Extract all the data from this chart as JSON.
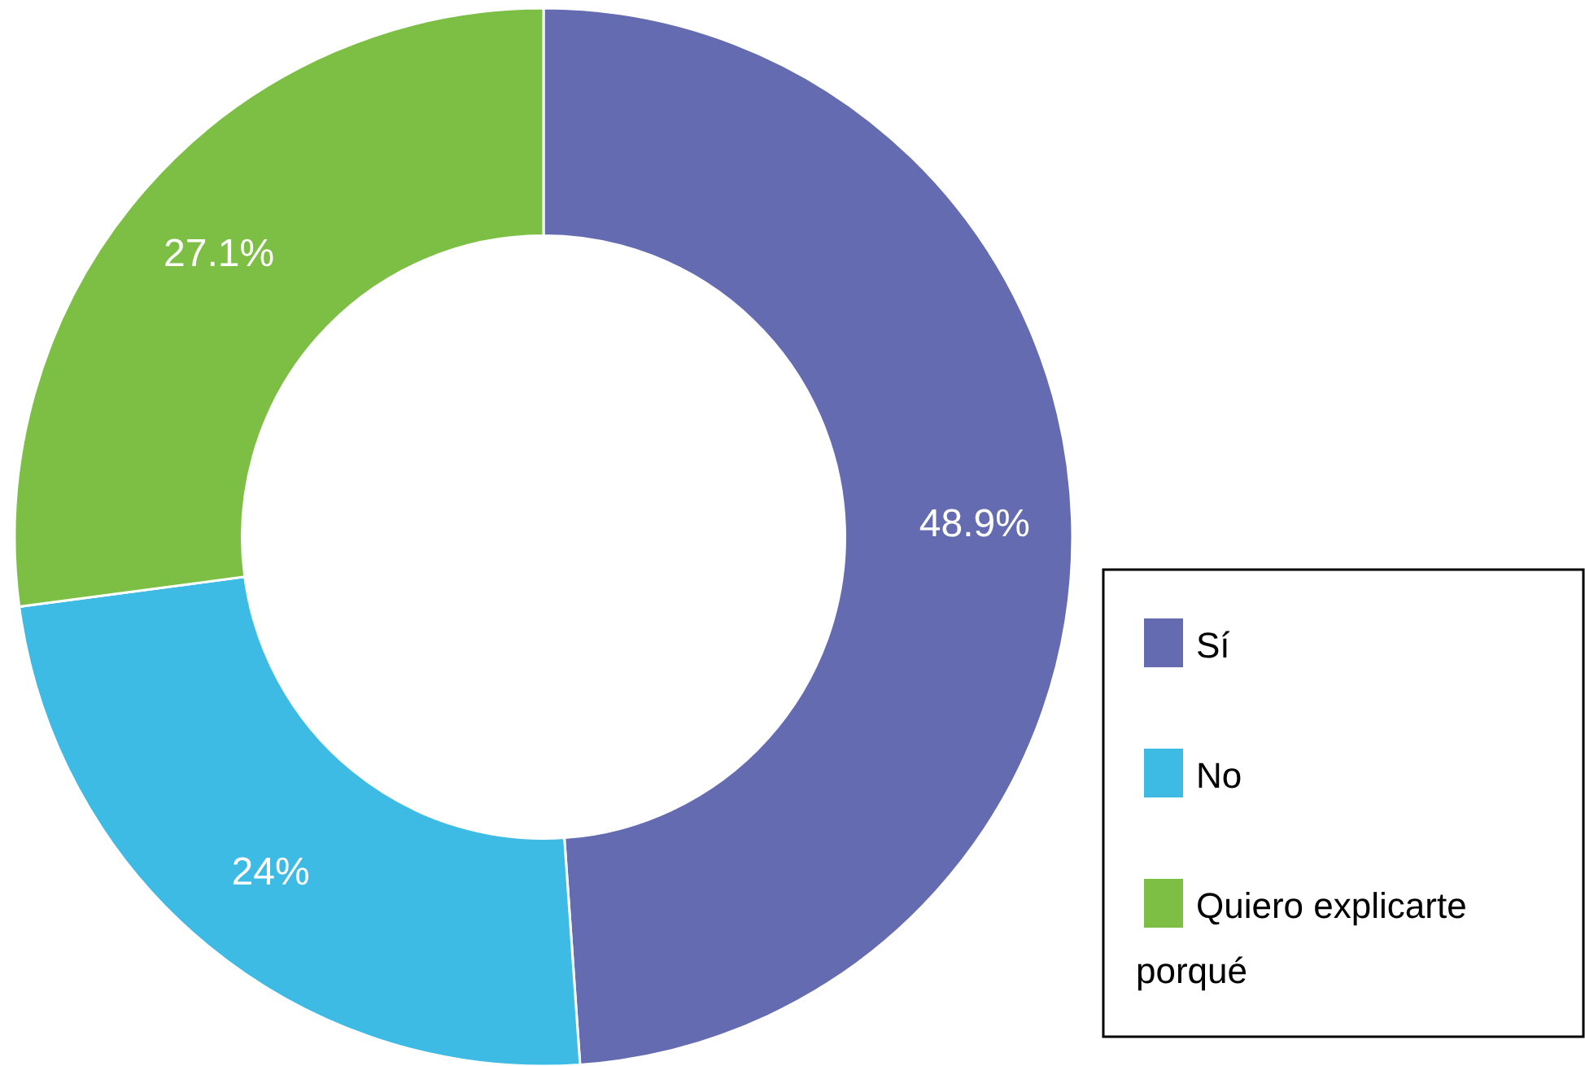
{
  "chart_data": {
    "type": "donut",
    "categories": [
      "Sí",
      "No",
      "Quiero explicarte porqué"
    ],
    "values": [
      48.9,
      24,
      27.1
    ],
    "colors": [
      "#656bb1",
      "#3dbbe5",
      "#7dbf45"
    ],
    "value_labels": [
      "48.9%",
      "24%",
      "27.1%"
    ],
    "legend": "bottom right"
  }
}
